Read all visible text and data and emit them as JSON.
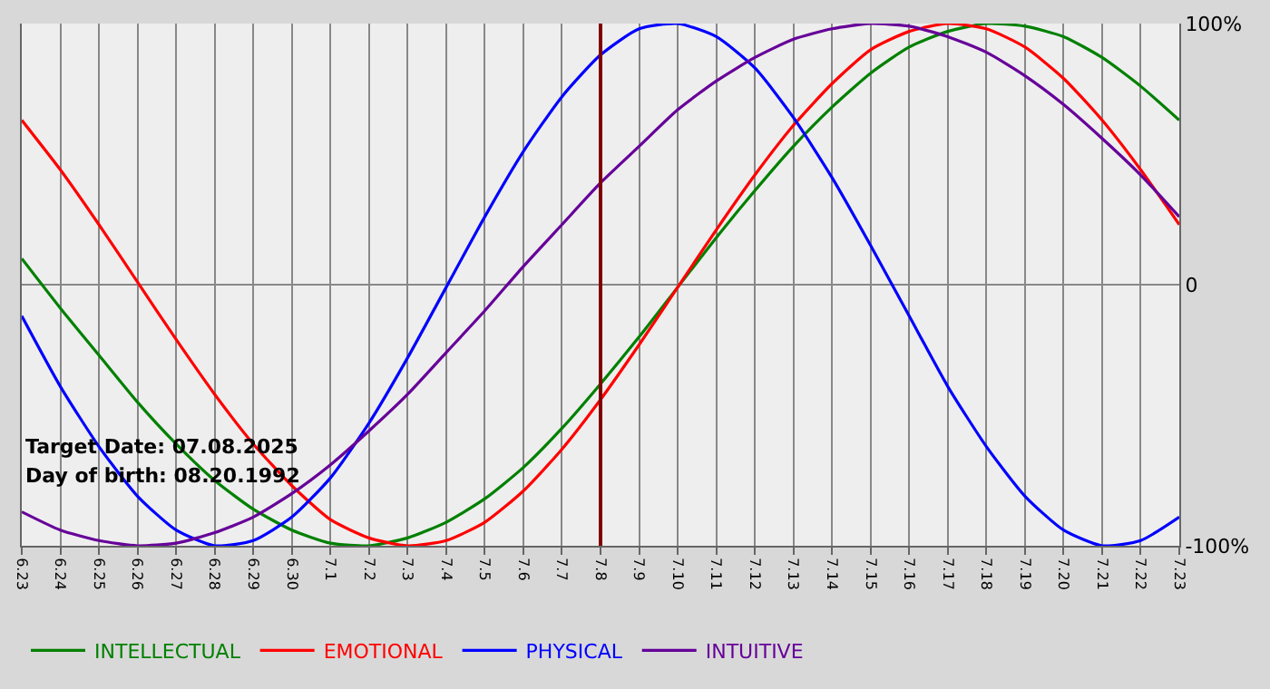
{
  "chart_data": {
    "type": "line",
    "categories": [
      "6.23",
      "6.24",
      "6.25",
      "6.26",
      "6.27",
      "6.28",
      "6.29",
      "6.30",
      "7.1",
      "7.2",
      "7.3",
      "7.4",
      "7.5",
      "7.6",
      "7.7",
      "7.8",
      "7.9",
      "7.10",
      "7.11",
      "7.12",
      "7.13",
      "7.14",
      "7.15",
      "7.16",
      "7.17",
      "7.18",
      "7.19",
      "7.20",
      "7.21",
      "7.22",
      "7.23"
    ],
    "series": [
      {
        "name": "INTELLECTUAL",
        "color": "#008000",
        "values": [
          10,
          -9,
          -27,
          -45,
          -61,
          -75,
          -86,
          -94,
          -99,
          -100,
          -97,
          -91,
          -82,
          -70,
          -55,
          -38,
          -20,
          -1,
          18,
          36,
          53,
          68,
          81,
          91,
          97,
          100,
          99,
          95,
          87,
          76,
          63
        ]
      },
      {
        "name": "EMOTIONAL",
        "color": "#ff0000",
        "values": [
          63,
          44,
          23,
          1,
          -21,
          -42,
          -61,
          -77,
          -90,
          -97,
          -100,
          -98,
          -91,
          -79,
          -63,
          -44,
          -23,
          -1,
          21,
          42,
          61,
          77,
          90,
          97,
          100,
          98,
          91,
          79,
          63,
          44,
          23
        ]
      },
      {
        "name": "PHYSICAL",
        "color": "#0000ff",
        "values": [
          -12,
          -39,
          -62,
          -81,
          -94,
          -100,
          -98,
          -89,
          -74,
          -53,
          -28,
          -1,
          26,
          51,
          72,
          88,
          98,
          100,
          95,
          83,
          64,
          41,
          15,
          -12,
          -39,
          -62,
          -81,
          -94,
          -100,
          -98,
          -89
        ]
      },
      {
        "name": "INTUITIVE",
        "color": "#660099",
        "values": [
          -87,
          -94,
          -98,
          -100,
          -99,
          -95,
          -89,
          -80,
          -69,
          -56,
          -42,
          -26,
          -10,
          7,
          23,
          39,
          53,
          67,
          78,
          87,
          94,
          98,
          100,
          99,
          95,
          89,
          80,
          69,
          56,
          42,
          26
        ]
      }
    ],
    "ylim": [
      -100,
      100
    ],
    "yticks": [
      {
        "value": 100,
        "label": "100%"
      },
      0,
      {
        "value": -100,
        "label": "-100%"
      }
    ],
    "ref_lines": [
      {
        "axis": "x",
        "value": "7.8",
        "color": "#800000"
      }
    ],
    "annotations": [
      "Target Date: 07.08.2025",
      "Day of birth: 08.20.1992"
    ],
    "grid": true,
    "legend": "bottom left",
    "marker": "none",
    "line_style": "solid"
  }
}
